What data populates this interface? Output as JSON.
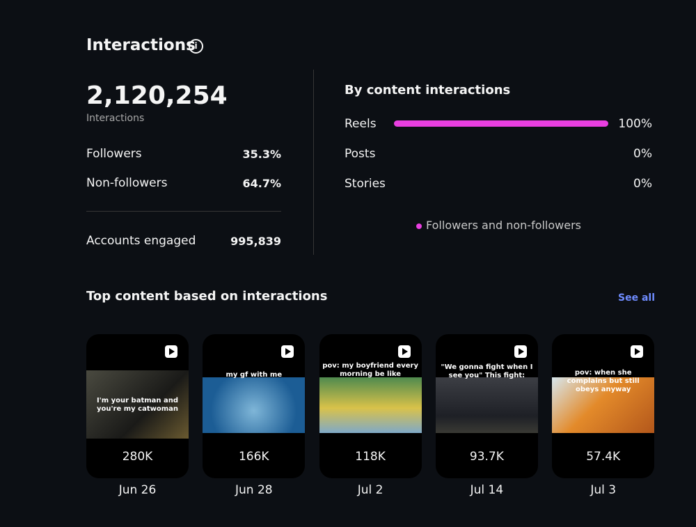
{
  "header": {
    "title": "Interactions"
  },
  "summary": {
    "total": "2,120,254",
    "total_label": "Interactions",
    "rows": [
      {
        "label": "Followers",
        "value": "35.3%"
      },
      {
        "label": "Non-followers",
        "value": "64.7%"
      }
    ],
    "accounts": {
      "label": "Accounts engaged",
      "value": "995,839"
    }
  },
  "breakdown": {
    "title": "By content interactions",
    "color": "#e93fe0",
    "rows": [
      {
        "label": "Reels",
        "value": 100,
        "value_label": "100%"
      },
      {
        "label": "Posts",
        "value": 0,
        "value_label": "0%"
      },
      {
        "label": "Stories",
        "value": 0,
        "value_label": "0%"
      }
    ],
    "legend": "Followers and non-followers"
  },
  "top_content": {
    "title": "Top content based on interactions",
    "link": "See all",
    "items": [
      {
        "caption": "I'm your batman and you're my catwoman",
        "value": "280K",
        "date": "Jun 26"
      },
      {
        "caption": "my gf with me",
        "value": "166K",
        "date": "Jun 28"
      },
      {
        "caption": "pov: my boyfriend every morning be like",
        "value": "118K",
        "date": "Jul 2"
      },
      {
        "caption": "\"We gonna fight when I see you\" This fight:",
        "value": "93.7K",
        "date": "Jul 14"
      },
      {
        "caption": "pov: when she complains but still obeys anyway",
        "value": "57.4K",
        "date": "Jul 3"
      }
    ]
  }
}
